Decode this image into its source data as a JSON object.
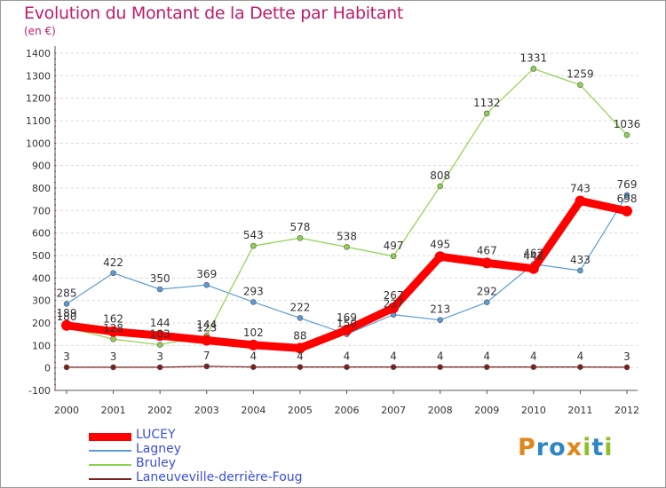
{
  "title": "Evolution du Montant de la Dette par Habitant",
  "subtitle": "(en €)",
  "logo": {
    "text": "Proxiti",
    "letter_colors": [
      "#e2861a",
      "#2e86c8",
      "#2e86c8",
      "#e2861a",
      "#8fbf2a",
      "#2e86c8",
      "#8fbf2a"
    ]
  },
  "chart_data": {
    "type": "line",
    "title": "Evolution du Montant de la Dette par Habitant",
    "ylabel": "(en €)",
    "xlabel": "",
    "x": [
      "2000",
      "2001",
      "2002",
      "2003",
      "2004",
      "2005",
      "2006",
      "2007",
      "2008",
      "2009",
      "2010",
      "2011",
      "2012"
    ],
    "ylim": [
      -100,
      1400
    ],
    "yticks": [
      "-100",
      "0",
      "100",
      "200",
      "300",
      "400",
      "500",
      "600",
      "700",
      "800",
      "900",
      "1000",
      "1100",
      "1200",
      "1300",
      "1400"
    ],
    "grid": "horizontal dashed",
    "legend": "bottom-left",
    "series": [
      {
        "name": "LUCEY",
        "color": "#ff0000",
        "values": [
          189,
          162,
          144,
          123,
          102,
          88,
          169,
          267,
          495,
          467,
          442,
          743,
          698
        ]
      },
      {
        "name": "Lagney",
        "color": "#5b9bd5",
        "values": [
          285,
          422,
          350,
          369,
          293,
          222,
          150,
          237,
          213,
          292,
          462,
          433,
          769
        ]
      },
      {
        "name": "Bruley",
        "color": "#8fd14f",
        "values": [
          180,
          128,
          103,
          144,
          543,
          578,
          538,
          497,
          808,
          1132,
          1331,
          1259,
          1036
        ]
      },
      {
        "name": "Laneuveville-derrière-Foug",
        "color": "#7b1f1f",
        "values": [
          3,
          3,
          3,
          7,
          4,
          4,
          4,
          4,
          4,
          4,
          4,
          4,
          3
        ]
      }
    ]
  }
}
